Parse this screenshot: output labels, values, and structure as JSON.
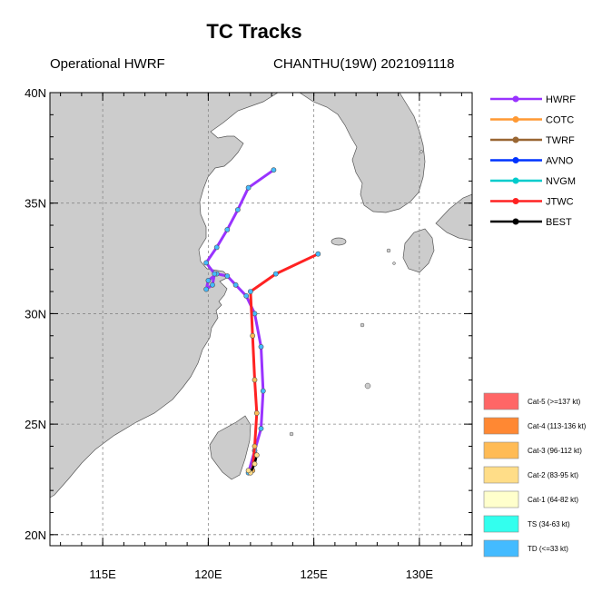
{
  "title": "TC Tracks",
  "subtitle_left": "Operational HWRF",
  "subtitle_right": "CHANTHU(19W) 2021091118",
  "map": {
    "lon_range": [
      112.5,
      132.5
    ],
    "lat_range": [
      19.5,
      40
    ],
    "lon_ticks": [
      {
        "value": 115,
        "label": "115E"
      },
      {
        "value": 120,
        "label": "120E"
      },
      {
        "value": 125,
        "label": "125E"
      },
      {
        "value": 130,
        "label": "130E"
      }
    ],
    "lat_ticks": [
      {
        "value": 20,
        "label": "20N"
      },
      {
        "value": 25,
        "label": "25N"
      },
      {
        "value": 30,
        "label": "30N"
      },
      {
        "value": 35,
        "label": "35N"
      },
      {
        "value": 40,
        "label": "40N"
      }
    ],
    "ocean_color": "#ffffff",
    "land_color": "#cccccc",
    "grid": true
  },
  "tracks": [
    {
      "name": "HWRF",
      "color": "#9933ff",
      "points": [
        [
          121.9,
          22.8
        ],
        [
          122.2,
          23.8
        ],
        [
          122.5,
          24.8
        ],
        [
          122.6,
          26.5
        ],
        [
          122.5,
          28.5
        ],
        [
          122.2,
          30.0
        ],
        [
          121.8,
          30.8
        ],
        [
          121.3,
          31.3
        ],
        [
          120.9,
          31.7
        ],
        [
          120.4,
          31.8
        ],
        [
          120.0,
          31.5
        ],
        [
          119.9,
          31.1
        ],
        [
          120.2,
          31.3
        ],
        [
          120.3,
          31.8
        ],
        [
          119.9,
          32.3
        ],
        [
          120.4,
          33.0
        ],
        [
          120.9,
          33.8
        ],
        [
          121.4,
          34.7
        ],
        [
          121.9,
          35.7
        ],
        [
          123.1,
          36.5
        ]
      ]
    },
    {
      "name": "JTWC",
      "color": "#ff2222",
      "points": [
        [
          122.1,
          22.9
        ],
        [
          122.2,
          24.0
        ],
        [
          122.3,
          25.5
        ],
        [
          122.2,
          27.0
        ],
        [
          122.1,
          29.0
        ],
        [
          122.0,
          31.0
        ],
        [
          123.2,
          31.8
        ],
        [
          125.2,
          32.7
        ]
      ]
    },
    {
      "name": "BEST",
      "color": "#000000",
      "points": [
        [
          122.3,
          23.6
        ],
        [
          122.2,
          23.2
        ],
        [
          122.0,
          22.8
        ],
        [
          121.9,
          22.9
        ]
      ]
    }
  ],
  "legend": [
    {
      "label": "HWRF",
      "color": "#9933ff"
    },
    {
      "label": "COTC",
      "color": "#ff9933"
    },
    {
      "label": "TWRF",
      "color": "#996633"
    },
    {
      "label": "AVNO",
      "color": "#0033ff"
    },
    {
      "label": "NVGM",
      "color": "#00cccc"
    },
    {
      "label": "JTWC",
      "color": "#ff2222"
    },
    {
      "label": "BEST",
      "color": "#000000"
    }
  ],
  "intensity_legend": [
    {
      "label": "Cat-5 (>=137 kt)",
      "color": "#ff6666"
    },
    {
      "label": "Cat-4 (113-136 kt)",
      "color": "#ff8833"
    },
    {
      "label": "Cat-3 (96-112 kt)",
      "color": "#ffbb55"
    },
    {
      "label": "Cat-2 (83-95 kt)",
      "color": "#ffdd88"
    },
    {
      "label": "Cat-1 (64-82 kt)",
      "color": "#ffffcc"
    },
    {
      "label": "TS (34-63 kt)",
      "color": "#33ffee"
    },
    {
      "label": "TD (<=33 kt)",
      "color": "#44bbff"
    }
  ]
}
